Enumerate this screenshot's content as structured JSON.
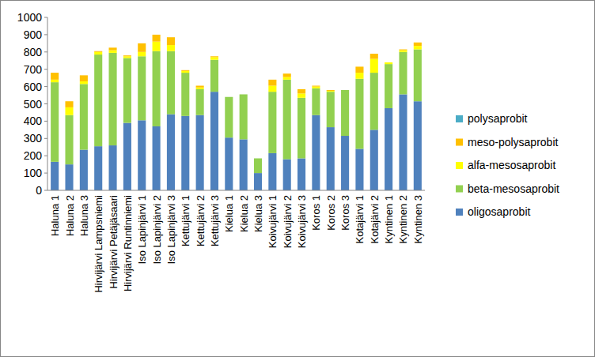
{
  "chart_data": {
    "type": "bar",
    "stacked": true,
    "legend": "right",
    "grid": false,
    "categories": [
      "Haluna 1",
      "Haluna 2",
      "Haluna 3",
      "Hirvijärvi Lampsniemi",
      "Hirvijärvi Petäjäsaari",
      "Hirvijärvi Runtinniemi",
      "Iso Lapinjärvi 1",
      "Iso Lapinjärvi 2",
      "Iso Lapinjärvi 3",
      "Kettujärvi 1",
      "Kettujärvi 2",
      "Kettujärvi 3",
      "Kielua 1",
      "Kielua 2",
      "Kielua 3",
      "Koivujärvi 1",
      "Koivujärvi 2",
      "Koivujärvi 3",
      "Koros 1",
      "Koros 2",
      "Koros 3",
      "Kotajärvi 1",
      "Kotajärvi 2",
      "Kyntinen 1",
      "Kyntinen 2",
      "Kyntinen 3"
    ],
    "series": [
      {
        "name": "oligosaprobit",
        "color": "#4f81bd",
        "values": [
          165,
          150,
          235,
          255,
          260,
          390,
          405,
          370,
          440,
          430,
          435,
          570,
          305,
          295,
          100,
          215,
          180,
          185,
          435,
          365,
          315,
          240,
          350,
          475,
          555,
          515
        ]
      },
      {
        "name": "beta-mesosaprobit",
        "color": "#92d050",
        "values": [
          460,
          285,
          380,
          530,
          535,
          375,
          370,
          435,
          365,
          250,
          150,
          185,
          235,
          260,
          85,
          355,
          460,
          350,
          155,
          205,
          265,
          405,
          330,
          255,
          245,
          300
        ]
      },
      {
        "name": "alfa-mesosaprobit",
        "color": "#ffff00",
        "values": [
          15,
          45,
          15,
          15,
          15,
          10,
          25,
          55,
          35,
          10,
          10,
          15,
          0,
          0,
          0,
          35,
          15,
          25,
          10,
          5,
          0,
          35,
          80,
          10,
          10,
          20
        ]
      },
      {
        "name": "meso-polysaprobit",
        "color": "#ffc000",
        "values": [
          40,
          35,
          35,
          5,
          15,
          5,
          50,
          40,
          45,
          5,
          10,
          5,
          0,
          0,
          0,
          35,
          20,
          25,
          5,
          5,
          0,
          35,
          30,
          0,
          5,
          20
        ]
      },
      {
        "name": "polysaprobit",
        "color": "#4bacc6",
        "values": [
          0,
          0,
          0,
          0,
          0,
          0,
          0,
          0,
          0,
          0,
          0,
          0,
          0,
          0,
          0,
          0,
          0,
          0,
          0,
          0,
          0,
          0,
          0,
          0,
          0,
          0
        ]
      }
    ],
    "ylim": [
      0,
      1000
    ],
    "yticks": [
      0,
      100,
      200,
      300,
      400,
      500,
      600,
      700,
      800,
      900,
      1000
    ]
  }
}
